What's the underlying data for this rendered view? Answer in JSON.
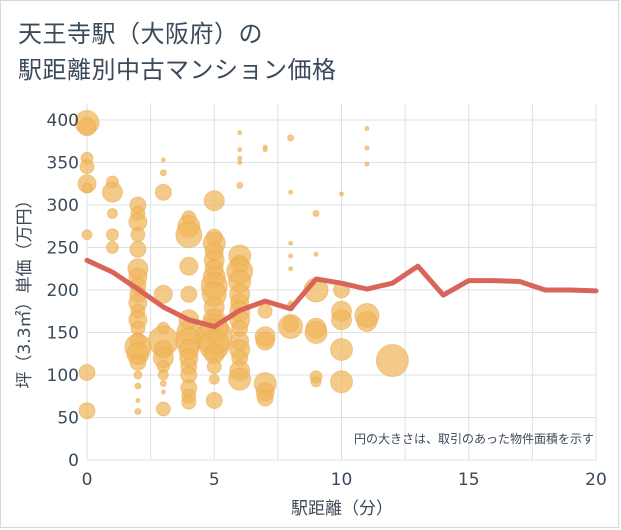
{
  "title_line1": "天王寺駅（大阪府）の",
  "title_line2": "駅距離別中古マンション価格",
  "chart_data": {
    "type": "scatter",
    "title": "天王寺駅（大阪府）の駅距離別中古マンション価格",
    "xlabel": "駅距離（分）",
    "ylabel": "坪（3.3㎡）単価（万円）",
    "xlim": [
      0,
      20
    ],
    "ylim": [
      0,
      420
    ],
    "xticks": [
      "0",
      "5",
      "10",
      "15",
      "20"
    ],
    "yticks": [
      "0",
      "50",
      "100",
      "150",
      "200",
      "250",
      "300",
      "350",
      "400"
    ],
    "grid": true,
    "annotation": "円の大きさは、取引のあった物件面積を示す",
    "colors": {
      "bubble": "#f0b55c",
      "line": "#d9655a",
      "text": "#3b4a59",
      "grid": "#dde1e6"
    },
    "bubbles": [
      {
        "x": 0,
        "y": 397,
        "s": 12
      },
      {
        "x": 0,
        "y": 392,
        "s": 9
      },
      {
        "x": 0,
        "y": 355,
        "s": 6
      },
      {
        "x": 0,
        "y": 345,
        "s": 7
      },
      {
        "x": 0,
        "y": 325,
        "s": 9
      },
      {
        "x": 0,
        "y": 320,
        "s": 5
      },
      {
        "x": 0,
        "y": 265,
        "s": 5
      },
      {
        "x": 0,
        "y": 103,
        "s": 8
      },
      {
        "x": 0,
        "y": 58,
        "s": 8
      },
      {
        "x": 1,
        "y": 327,
        "s": 6
      },
      {
        "x": 1,
        "y": 315,
        "s": 10
      },
      {
        "x": 1,
        "y": 290,
        "s": 5
      },
      {
        "x": 1,
        "y": 265,
        "s": 6
      },
      {
        "x": 1,
        "y": 250,
        "s": 6
      },
      {
        "x": 2,
        "y": 300,
        "s": 8
      },
      {
        "x": 2,
        "y": 290,
        "s": 7
      },
      {
        "x": 2,
        "y": 280,
        "s": 9
      },
      {
        "x": 2,
        "y": 265,
        "s": 7
      },
      {
        "x": 2,
        "y": 248,
        "s": 8
      },
      {
        "x": 2,
        "y": 225,
        "s": 10
      },
      {
        "x": 2,
        "y": 215,
        "s": 9
      },
      {
        "x": 2,
        "y": 205,
        "s": 8
      },
      {
        "x": 2,
        "y": 195,
        "s": 8
      },
      {
        "x": 2,
        "y": 185,
        "s": 9
      },
      {
        "x": 2,
        "y": 175,
        "s": 7
      },
      {
        "x": 2,
        "y": 165,
        "s": 9
      },
      {
        "x": 2,
        "y": 155,
        "s": 7
      },
      {
        "x": 2,
        "y": 140,
        "s": 8
      },
      {
        "x": 2,
        "y": 133,
        "s": 13
      },
      {
        "x": 2,
        "y": 125,
        "s": 11
      },
      {
        "x": 2,
        "y": 115,
        "s": 8
      },
      {
        "x": 2,
        "y": 100,
        "s": 4
      },
      {
        "x": 2,
        "y": 87,
        "s": 3
      },
      {
        "x": 2,
        "y": 70,
        "s": 2
      },
      {
        "x": 2,
        "y": 57,
        "s": 3
      },
      {
        "x": 3,
        "y": 353,
        "s": 2
      },
      {
        "x": 3,
        "y": 338,
        "s": 3
      },
      {
        "x": 3,
        "y": 315,
        "s": 8
      },
      {
        "x": 3,
        "y": 195,
        "s": 9
      },
      {
        "x": 3,
        "y": 155,
        "s": 6
      },
      {
        "x": 3,
        "y": 140,
        "s": 15
      },
      {
        "x": 3,
        "y": 130,
        "s": 9
      },
      {
        "x": 3,
        "y": 120,
        "s": 10
      },
      {
        "x": 3,
        "y": 110,
        "s": 6
      },
      {
        "x": 3,
        "y": 100,
        "s": 5
      },
      {
        "x": 3,
        "y": 90,
        "s": 3
      },
      {
        "x": 3,
        "y": 80,
        "s": 2
      },
      {
        "x": 3,
        "y": 60,
        "s": 7
      },
      {
        "x": 4,
        "y": 285,
        "s": 7
      },
      {
        "x": 4,
        "y": 275,
        "s": 11
      },
      {
        "x": 4,
        "y": 265,
        "s": 13
      },
      {
        "x": 4,
        "y": 228,
        "s": 9
      },
      {
        "x": 4,
        "y": 195,
        "s": 8
      },
      {
        "x": 4,
        "y": 165,
        "s": 10
      },
      {
        "x": 4,
        "y": 150,
        "s": 12
      },
      {
        "x": 4,
        "y": 140,
        "s": 13
      },
      {
        "x": 4,
        "y": 130,
        "s": 10
      },
      {
        "x": 4,
        "y": 120,
        "s": 9
      },
      {
        "x": 4,
        "y": 110,
        "s": 8
      },
      {
        "x": 4,
        "y": 100,
        "s": 8
      },
      {
        "x": 4,
        "y": 85,
        "s": 8
      },
      {
        "x": 4,
        "y": 75,
        "s": 7
      },
      {
        "x": 4,
        "y": 68,
        "s": 7
      },
      {
        "x": 5,
        "y": 305,
        "s": 10
      },
      {
        "x": 5,
        "y": 262,
        "s": 8
      },
      {
        "x": 5,
        "y": 255,
        "s": 11
      },
      {
        "x": 5,
        "y": 245,
        "s": 9
      },
      {
        "x": 5,
        "y": 235,
        "s": 10
      },
      {
        "x": 5,
        "y": 225,
        "s": 9
      },
      {
        "x": 5,
        "y": 215,
        "s": 11
      },
      {
        "x": 5,
        "y": 205,
        "s": 13
      },
      {
        "x": 5,
        "y": 195,
        "s": 12
      },
      {
        "x": 5,
        "y": 180,
        "s": 10
      },
      {
        "x": 5,
        "y": 165,
        "s": 11
      },
      {
        "x": 5,
        "y": 155,
        "s": 14
      },
      {
        "x": 5,
        "y": 145,
        "s": 18
      },
      {
        "x": 5,
        "y": 135,
        "s": 15
      },
      {
        "x": 5,
        "y": 125,
        "s": 10
      },
      {
        "x": 5,
        "y": 110,
        "s": 7
      },
      {
        "x": 5,
        "y": 95,
        "s": 5
      },
      {
        "x": 5,
        "y": 70,
        "s": 8
      },
      {
        "x": 6,
        "y": 385,
        "s": 2
      },
      {
        "x": 6,
        "y": 365,
        "s": 2
      },
      {
        "x": 6,
        "y": 355,
        "s": 2
      },
      {
        "x": 6,
        "y": 350,
        "s": 2
      },
      {
        "x": 6,
        "y": 323,
        "s": 3
      },
      {
        "x": 6,
        "y": 240,
        "s": 11
      },
      {
        "x": 6,
        "y": 230,
        "s": 9
      },
      {
        "x": 6,
        "y": 222,
        "s": 13
      },
      {
        "x": 6,
        "y": 210,
        "s": 11
      },
      {
        "x": 6,
        "y": 195,
        "s": 10
      },
      {
        "x": 6,
        "y": 185,
        "s": 9
      },
      {
        "x": 6,
        "y": 175,
        "s": 10
      },
      {
        "x": 6,
        "y": 165,
        "s": 10
      },
      {
        "x": 6,
        "y": 155,
        "s": 8
      },
      {
        "x": 6,
        "y": 140,
        "s": 9
      },
      {
        "x": 6,
        "y": 130,
        "s": 10
      },
      {
        "x": 6,
        "y": 120,
        "s": 8
      },
      {
        "x": 6,
        "y": 105,
        "s": 10
      },
      {
        "x": 6,
        "y": 95,
        "s": 11
      },
      {
        "x": 7,
        "y": 368,
        "s": 2
      },
      {
        "x": 7,
        "y": 365,
        "s": 2
      },
      {
        "x": 7,
        "y": 175,
        "s": 7
      },
      {
        "x": 7,
        "y": 145,
        "s": 10
      },
      {
        "x": 7,
        "y": 140,
        "s": 9
      },
      {
        "x": 7,
        "y": 90,
        "s": 11
      },
      {
        "x": 7,
        "y": 80,
        "s": 9
      },
      {
        "x": 7,
        "y": 73,
        "s": 8
      },
      {
        "x": 8,
        "y": 379,
        "s": 3
      },
      {
        "x": 8,
        "y": 315,
        "s": 2
      },
      {
        "x": 8,
        "y": 255,
        "s": 2
      },
      {
        "x": 8,
        "y": 240,
        "s": 2
      },
      {
        "x": 8,
        "y": 225,
        "s": 2
      },
      {
        "x": 8,
        "y": 185,
        "s": 2
      },
      {
        "x": 8,
        "y": 180,
        "s": 4
      },
      {
        "x": 8,
        "y": 160,
        "s": 8
      },
      {
        "x": 8,
        "y": 157,
        "s": 12
      },
      {
        "x": 9,
        "y": 290,
        "s": 3
      },
      {
        "x": 9,
        "y": 242,
        "s": 2
      },
      {
        "x": 9,
        "y": 200,
        "s": 12
      },
      {
        "x": 9,
        "y": 155,
        "s": 10
      },
      {
        "x": 9,
        "y": 150,
        "s": 11
      },
      {
        "x": 9,
        "y": 98,
        "s": 6
      },
      {
        "x": 9,
        "y": 92,
        "s": 5
      },
      {
        "x": 10,
        "y": 313,
        "s": 2
      },
      {
        "x": 10,
        "y": 200,
        "s": 8
      },
      {
        "x": 10,
        "y": 175,
        "s": 10
      },
      {
        "x": 10,
        "y": 165,
        "s": 10
      },
      {
        "x": 10,
        "y": 130,
        "s": 11
      },
      {
        "x": 10,
        "y": 92,
        "s": 11
      },
      {
        "x": 11,
        "y": 390,
        "s": 2
      },
      {
        "x": 11,
        "y": 367,
        "s": 2
      },
      {
        "x": 11,
        "y": 348,
        "s": 2
      },
      {
        "x": 11,
        "y": 170,
        "s": 12
      },
      {
        "x": 11,
        "y": 163,
        "s": 10
      },
      {
        "x": 12,
        "y": 117,
        "s": 16
      }
    ],
    "series": [
      {
        "x": [
          0,
          1,
          2,
          3,
          4,
          5,
          6,
          7,
          8,
          9,
          10,
          11,
          12,
          13,
          14,
          15,
          16,
          17,
          18,
          19,
          20
        ],
        "values": [
          235,
          221,
          201,
          180,
          165,
          157,
          176,
          187,
          178,
          213,
          208,
          201,
          208,
          228,
          194,
          211,
          211,
          210,
          200,
          200,
          199
        ]
      }
    ]
  }
}
